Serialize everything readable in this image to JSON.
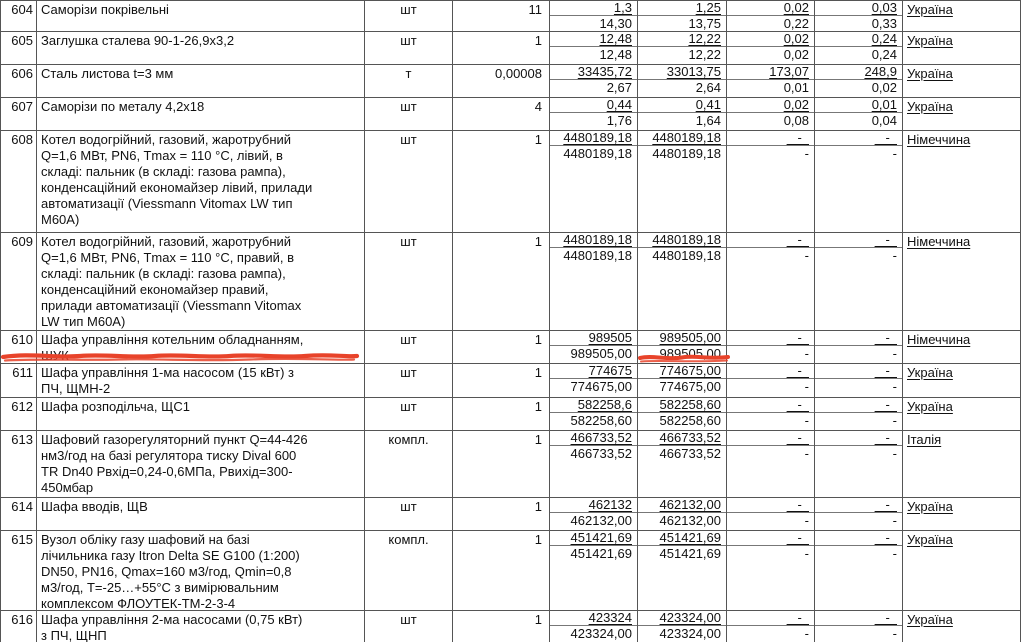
{
  "document": {
    "type": "price-table-fragment",
    "language": "uk",
    "countries_seen": [
      "Україна",
      "Німеччина",
      "Італія"
    ]
  },
  "table": {
    "rows": [
      {
        "num": "604",
        "desc": "Саморізи покрівельні",
        "unit": "шт",
        "qty": "11",
        "p1": [
          "1,3",
          "14,30"
        ],
        "p2": [
          "1,25",
          "13,75"
        ],
        "p3": [
          "0,02",
          "0,22"
        ],
        "p4": [
          "0,03",
          "0,33"
        ],
        "country": "Україна"
      },
      {
        "num": "605",
        "desc": "Заглушка сталева 90-1-26,9х3,2",
        "unit": "шт",
        "qty": "1",
        "p1": [
          "12,48",
          "12,48"
        ],
        "p2": [
          "12,22",
          "12,22"
        ],
        "p3": [
          "0,02",
          "0,02"
        ],
        "p4": [
          "0,24",
          "0,24"
        ],
        "country": "Україна"
      },
      {
        "num": "606",
        "desc": "Сталь листова t=3 мм",
        "unit": "т",
        "qty": "0,00008",
        "p1": [
          "33435,72",
          "2,67"
        ],
        "p2": [
          "33013,75",
          "2,64"
        ],
        "p3": [
          "173,07",
          "0,01"
        ],
        "p4": [
          "248,9",
          "0,02"
        ],
        "country": "Україна"
      },
      {
        "num": "607",
        "desc": "Саморізи по металу 4,2х18",
        "unit": "шт",
        "qty": "4",
        "p1": [
          "0,44",
          "1,76"
        ],
        "p2": [
          "0,41",
          "1,64"
        ],
        "p3": [
          "0,02",
          "0,08"
        ],
        "p4": [
          "0,01",
          "0,04"
        ],
        "country": "Україна"
      },
      {
        "num": "608",
        "desc": "Котел водогрійний, газовий, жаротрубний\nQ=1,6 МВт, PN6, Tmax = 110 °С, лівий, в\nскладі: пальник (в складі: газова рампа),\nконденсаційний економайзер лівий, прилади\nавтоматизації (Viessmann Vitomax LW тип\nМ60А)",
        "unit": "шт",
        "qty": "1",
        "p1": [
          "4480189,18",
          "4480189,18"
        ],
        "p2": [
          "4480189,18",
          "4480189,18"
        ],
        "p3": [
          "-",
          "-"
        ],
        "p4": [
          "-",
          "-"
        ],
        "country": "Німеччина"
      },
      {
        "num": "609",
        "desc": "Котел водогрійний, газовий, жаротрубний\nQ=1,6 МВт, PN6, Tmax = 110 °С, правий, в\nскладі: пальник (в складі: газова рампа),\nконденсаційний економайзер правий,\nприлади автоматизації (Viessmann Vitomax\nLW тип М60А)",
        "unit": "шт",
        "qty": "1",
        "p1": [
          "4480189,18",
          "4480189,18"
        ],
        "p2": [
          "4480189,18",
          "4480189,18"
        ],
        "p3": [
          "-",
          "-"
        ],
        "p4": [
          "-",
          "-"
        ],
        "country": "Німеччина"
      },
      {
        "num": "610",
        "desc": "Шафа управління котельним обладнанням,\nШУК",
        "unit": "шт",
        "qty": "1",
        "p1": [
          "989505",
          "989505,00"
        ],
        "p2": [
          "989505,00",
          "989505,00"
        ],
        "p3": [
          "-",
          "-"
        ],
        "p4": [
          "-",
          "-"
        ],
        "country": "Німеччина"
      },
      {
        "num": "611",
        "desc": "Шафа управління 1-ма насосом (15 кВт) з\nПЧ, ЩМН-2",
        "unit": "шт",
        "qty": "1",
        "p1": [
          "774675",
          "774675,00"
        ],
        "p2": [
          "774675,00",
          "774675,00"
        ],
        "p3": [
          "-",
          "-"
        ],
        "p4": [
          "-",
          "-"
        ],
        "country": "Україна"
      },
      {
        "num": "612",
        "desc": "Шафа розподільча, ЩС1",
        "unit": "шт",
        "qty": "1",
        "p1": [
          "582258,6",
          "582258,60"
        ],
        "p2": [
          "582258,60",
          "582258,60"
        ],
        "p3": [
          "-",
          "-"
        ],
        "p4": [
          "-",
          "-"
        ],
        "country": "Україна"
      },
      {
        "num": "613",
        "desc": "Шафовий газорегуляторний пункт Q=44-426\nнм3/год на базі регулятора тиску Dival 600\nTR Dn40 Рвхід=0,24-0,6МПа, Рвихід=300-\n450мбар",
        "unit": "компл.",
        "qty": "1",
        "p1": [
          "466733,52",
          "466733,52"
        ],
        "p2": [
          "466733,52",
          "466733,52"
        ],
        "p3": [
          "-",
          "-"
        ],
        "p4": [
          "-",
          "-"
        ],
        "country": "Італія"
      },
      {
        "num": "614",
        "desc": "Шафа вводів, ЩВ",
        "unit": "шт",
        "qty": "1",
        "p1": [
          "462132",
          "462132,00"
        ],
        "p2": [
          "462132,00",
          "462132,00"
        ],
        "p3": [
          "-",
          "-"
        ],
        "p4": [
          "-",
          "-"
        ],
        "country": "Україна"
      },
      {
        "num": "615",
        "desc": "Вузол обліку газу шафовий на базі\nлічильника газу Itron Delta SE G100 (1:200)\nDN50, PN16, Qmax=160 м3/год, Qmin=0,8\nм3/год, Т=-25…+55°С з вимірювальним\nкомплексом ФЛОУТЕК-ТМ-2-3-4",
        "unit": "компл.",
        "qty": "1",
        "p1": [
          "451421,69",
          "451421,69"
        ],
        "p2": [
          "451421,69",
          "451421,69"
        ],
        "p3": [
          "-",
          "-"
        ],
        "p4": [
          "-",
          "-"
        ],
        "country": "Україна"
      },
      {
        "num": "616",
        "desc": "Шафа управління 2-ма насосами (0,75 кВт)\nз ПЧ, ЩНП",
        "unit": "шт",
        "qty": "1",
        "p1": [
          "423324",
          "423324,00"
        ],
        "p2": [
          "423324,00",
          "423324,00"
        ],
        "p3": [
          "-",
          "-"
        ],
        "p4": [
          "-",
          "-"
        ],
        "country": "Україна"
      }
    ],
    "annotations": {
      "color": "#e8432a",
      "items": [
        {
          "target": "row-610-description",
          "style": "hand-drawn wavy red marker underline"
        },
        {
          "target": "row-610-price2-second-line-989505,00",
          "style": "hand-drawn wavy red marker underline"
        }
      ]
    }
  }
}
